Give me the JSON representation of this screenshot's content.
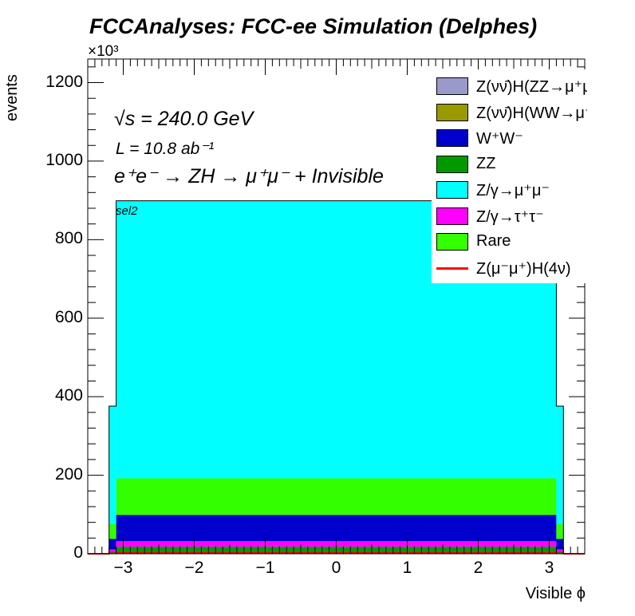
{
  "title": "FCCAnalyses: FCC-ee Simulation (Delphes)",
  "exponent": "×10³",
  "annotations": {
    "energy": "√s = 240.0 GeV",
    "lumi": "L = 10.8 ab⁻¹",
    "process": "e⁺e⁻ → ZH → μ⁺μ⁻ + Invisible",
    "selection": "sel2"
  },
  "chart_data": {
    "type": "bar",
    "stacked": true,
    "xlabel": "Visible ϕ",
    "ylabel": "events",
    "xlim": [
      -3.5,
      3.5
    ],
    "ylim": [
      0,
      1260
    ],
    "y_unit_scale": 1000,
    "xticks": [
      -3,
      -2,
      -1,
      0,
      1,
      2,
      3
    ],
    "xtick_labels": [
      "−3",
      "−2",
      "−1",
      "0",
      "1",
      "2",
      "3"
    ],
    "yticks": [
      0,
      200,
      400,
      600,
      800,
      1000,
      1200
    ],
    "ytick_labels": [
      "0",
      "200",
      "400",
      "600",
      "800",
      "1000",
      "1200"
    ],
    "bin_edges": [
      -3.5,
      -3.2,
      -3.1,
      3.1,
      3.2,
      3.5
    ],
    "series": [
      {
        "name": "ZZ",
        "color": "#009900",
        "values": [
          0,
          6,
          18,
          6,
          0
        ]
      },
      {
        "name": "Z/γ→τ⁺τ⁻",
        "color": "#ff00ff",
        "values": [
          0,
          5,
          14,
          5,
          0
        ]
      },
      {
        "name": "W⁺W⁻",
        "color": "#0000cc",
        "values": [
          0,
          27,
          67,
          27,
          0
        ]
      },
      {
        "name": "Rare",
        "color": "#33ff00",
        "values": [
          0,
          38,
          93,
          38,
          0
        ]
      },
      {
        "name": "Z/γ→μ⁺μ⁻",
        "color": "#00ffff",
        "values": [
          0,
          300,
          707,
          300,
          0
        ]
      },
      {
        "name": "Z(νν̄)H(WW→μ⁺νμ⁻ν̄)",
        "color": "#999900",
        "values": [
          0,
          0,
          0,
          0,
          0
        ]
      },
      {
        "name": "Z(νν̄)H(ZZ→μ⁺μ⁻νν̄)",
        "color": "#9999cc",
        "values": [
          0,
          0,
          0,
          0,
          0
        ]
      }
    ],
    "signal": {
      "name": "Z(μ⁻μ⁺)H(4ν)",
      "color": "#ff0000",
      "values": [
        0,
        1,
        2,
        1,
        0
      ]
    },
    "legend_order": [
      {
        "name": "Z(νν̄)H(ZZ→μ⁺μ⁻νν̄)",
        "color": "#9999cc",
        "style": "fill"
      },
      {
        "name": "Z(νν̄)H(WW→μ⁺νμ⁻ν̄)",
        "color": "#999900",
        "style": "fill"
      },
      {
        "name": "W⁺W⁻",
        "color": "#0000cc",
        "style": "fill"
      },
      {
        "name": "ZZ",
        "color": "#009900",
        "style": "fill"
      },
      {
        "name": "Z/γ→μ⁺μ⁻",
        "color": "#00ffff",
        "style": "fill"
      },
      {
        "name": "Z/γ→τ⁺τ⁻",
        "color": "#ff00ff",
        "style": "fill"
      },
      {
        "name": "Rare",
        "color": "#33ff00",
        "style": "fill"
      },
      {
        "name": "Z(μ⁻μ⁺)H(4ν)",
        "color": "#ff0000",
        "style": "line"
      }
    ],
    "legend_position": "top-right"
  }
}
